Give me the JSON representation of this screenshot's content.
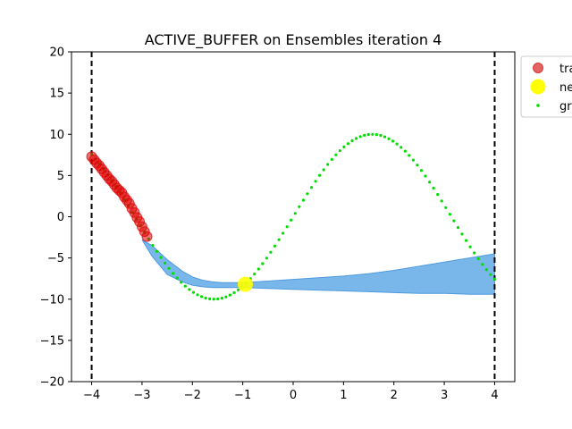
{
  "chart_data": {
    "type": "scatter",
    "title": "ACTIVE_BUFFER on Ensembles iteration 4",
    "xlim": [
      -4.4,
      4.4
    ],
    "ylim": [
      -20,
      20
    ],
    "x_ticks": [
      -4,
      -3,
      -2,
      -1,
      0,
      1,
      2,
      3,
      4
    ],
    "y_ticks": [
      -20,
      -15,
      -10,
      -5,
      0,
      5,
      10,
      15,
      20
    ],
    "x_tick_labels": [
      "−4",
      "−3",
      "−2",
      "−1",
      "0",
      "1",
      "2",
      "3",
      "4"
    ],
    "y_tick_labels": [
      "−20",
      "−15",
      "−10",
      "−5",
      "0",
      "5",
      "10",
      "15",
      "20"
    ],
    "grid": false,
    "legend_position": "outside-top-right",
    "vertical_lines": [
      -4,
      4
    ],
    "legend": [
      {
        "label": "tra",
        "marker": "circle",
        "color": "#e06666"
      },
      {
        "label": "ne",
        "marker": "circle",
        "color": "#ffff00"
      },
      {
        "label": "gr",
        "marker": "dot",
        "color": "#00dd00"
      }
    ],
    "ground_truth": {
      "name": "gr",
      "color": "#00dd00",
      "x_min": -4,
      "x_max": 4,
      "n_points": 100,
      "function": "10*sin(x)"
    },
    "train_points": {
      "name": "tra",
      "color": "#e06666",
      "x": [
        -4.0,
        -3.95,
        -3.9,
        -3.85,
        -3.8,
        -3.75,
        -3.7,
        -3.65,
        -3.6,
        -3.55,
        -3.5,
        -3.45,
        -3.4,
        -3.35,
        -3.3,
        -3.25,
        -3.2,
        -3.15,
        -3.1,
        -3.05,
        -3.0,
        -2.95,
        -2.9
      ],
      "y": [
        7.3,
        6.9,
        6.5,
        6.2,
        5.8,
        5.4,
        5.0,
        4.6,
        4.3,
        3.9,
        3.5,
        3.2,
        2.9,
        2.4,
        2.0,
        1.6,
        1.0,
        0.5,
        -0.1,
        -0.6,
        -1.2,
        -1.8,
        -2.4
      ]
    },
    "new_point": {
      "name": "ne",
      "color": "#ffff00",
      "x": -0.95,
      "y": -8.2
    },
    "uncertainty_band": {
      "color": "#6aaee8",
      "x": [
        -3.0,
        -2.8,
        -2.5,
        -2.2,
        -2.0,
        -1.8,
        -1.6,
        -1.4,
        -1.2,
        -1.0,
        -0.5,
        0.0,
        0.5,
        1.0,
        1.5,
        2.0,
        2.5,
        3.0,
        3.5,
        4.0
      ],
      "upper": [
        -2.8,
        -3.5,
        -5.2,
        -6.6,
        -7.3,
        -7.7,
        -7.9,
        -8.0,
        -8.0,
        -8.0,
        -7.8,
        -7.6,
        -7.4,
        -7.2,
        -6.9,
        -6.5,
        -6.0,
        -5.5,
        -5.0,
        -4.5
      ],
      "lower": [
        -2.8,
        -4.8,
        -7.0,
        -7.9,
        -8.3,
        -8.5,
        -8.6,
        -8.6,
        -8.6,
        -8.6,
        -8.7,
        -8.8,
        -8.9,
        -9.0,
        -9.1,
        -9.2,
        -9.3,
        -9.3,
        -9.4,
        -9.4
      ]
    }
  }
}
